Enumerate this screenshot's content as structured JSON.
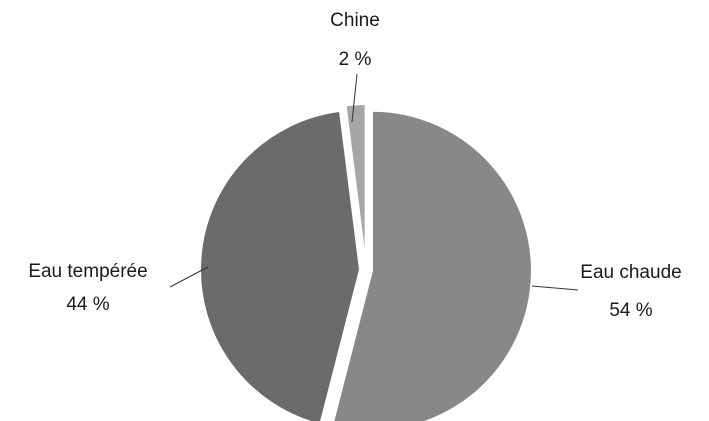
{
  "chart_data": {
    "type": "pie",
    "title": "",
    "slices": [
      {
        "name": "Eau chaude",
        "value": 54,
        "value_label": "54 %",
        "color": "#888888"
      },
      {
        "name": "Eau tempérée",
        "value": 44,
        "value_label": "44 %",
        "color": "#6b6b6b"
      },
      {
        "name": "Chine",
        "value": 2,
        "value_label": "2 %",
        "color": "#a6a6a6"
      }
    ],
    "exploded": true,
    "start_angle": "12 o'clock",
    "direction": "clockwise",
    "legend": "none",
    "labels_outside_with_leader_lines": true
  }
}
